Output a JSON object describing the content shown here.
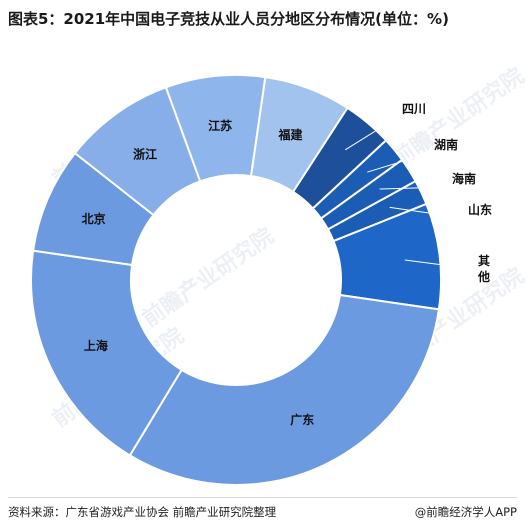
{
  "title": "图表5：2021年中国电子竞技从业人员分地区分布情况(单位：%)",
  "footer": {
    "source": "资料来源：广东省游戏产业协会 前瞻产业研究院整理",
    "brand": "@前瞻经济学人APP"
  },
  "watermark": "前瞻产业研究院",
  "chart_data": {
    "type": "pie",
    "donut": true,
    "categories": [
      "江苏",
      "福建",
      "四川",
      "湖南",
      "海南",
      "山东",
      "其他",
      "广东",
      "上海",
      "北京",
      "浙江"
    ],
    "values": [
      8.0,
      7.0,
      4.0,
      2.0,
      2.0,
      2.0,
      8.5,
      32.0,
      19.0,
      8.5,
      9.0
    ],
    "colors": [
      "#8fb6ec",
      "#a3c3ef",
      "#1e4f9a",
      "#1b5cb5",
      "#1b5cb5",
      "#1b5cb5",
      "#1e66c8",
      "#6c9ae0",
      "#6c9ae0",
      "#6c9ae0",
      "#87aee8"
    ],
    "label_inside": [
      true,
      true,
      false,
      false,
      false,
      false,
      false,
      true,
      true,
      true,
      true
    ],
    "label_text": [
      "江苏",
      "福建",
      "四川",
      "湖南",
      "海南",
      "山东",
      "其\n他",
      "广东",
      "上海",
      "北京",
      "浙江"
    ]
  }
}
